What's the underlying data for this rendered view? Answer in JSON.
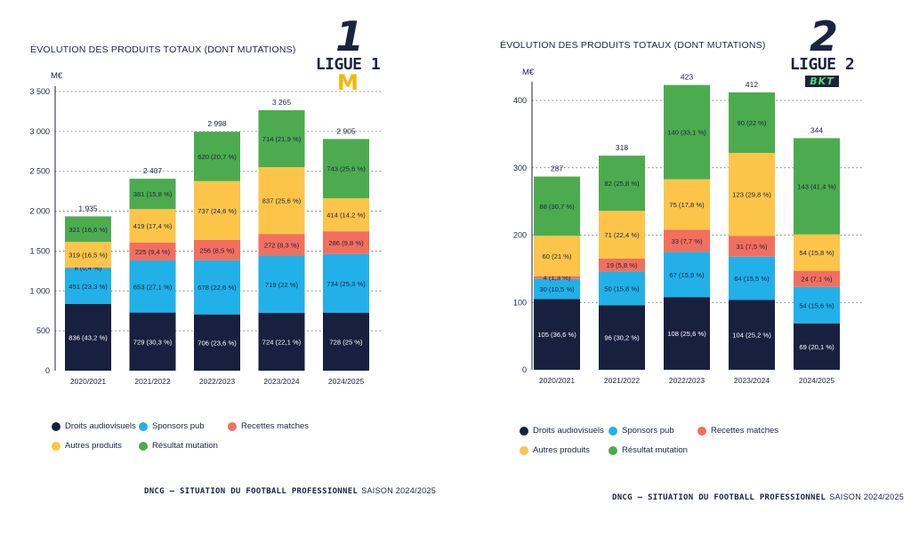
{
  "legend": [
    {
      "key": "droits",
      "label": "Droits audiovisuels",
      "color": "#17213f"
    },
    {
      "key": "sponsors",
      "label": "Sponsors pub",
      "color": "#21b1e8"
    },
    {
      "key": "recettes",
      "label": "Recettes matches",
      "color": "#f26f5f"
    },
    {
      "key": "autres",
      "label": "Autres produits",
      "color": "#fcc54a"
    },
    {
      "key": "mutation",
      "label": "Résultat mutation",
      "color": "#4dab4f"
    }
  ],
  "footer": {
    "bold": "DNCG – SITUATION DU FOOTBALL PROFESSIONNEL",
    "regular": "SAISON 2024/2025"
  },
  "chart_data": [
    {
      "type": "bar",
      "stacked": true,
      "title": "ÉVOLUTION DES PRODUITS TOTAUX (DONT MUTATIONS)",
      "ylabel": "M€",
      "logo": {
        "number": "1",
        "name": "LIGUE 1",
        "sponsor": "McDonald's"
      },
      "categories": [
        "2020/2021",
        "2021/2022",
        "2022/2023",
        "2023/2024",
        "2024/2025"
      ],
      "totals": [
        "1 935",
        "2 407",
        "2 998",
        "3 265",
        "2 905"
      ],
      "ylim": [
        0,
        3500
      ],
      "yticks": [
        0,
        500,
        1000,
        1500,
        2000,
        2500,
        3000,
        3500
      ],
      "ytick_labels": [
        "0",
        "500",
        "1 000",
        "1 500",
        "2 000",
        "2 500",
        "3 000",
        "3 500"
      ],
      "grid": "dotted horizontal",
      "series": [
        {
          "name": "Droits audiovisuels",
          "values": [
            836,
            729,
            706,
            724,
            728
          ],
          "labels": [
            "836 (43,2 %)",
            "729 (30,3 %)",
            "706 (23,6 %)",
            "724 (22,1 %)",
            "728 (25 %)"
          ]
        },
        {
          "name": "Sponsors pub",
          "values": [
            451,
            653,
            678,
            719,
            734
          ],
          "labels": [
            "451 (23,3 %)",
            "653 (27,1 %)",
            "678 (22,6 %)",
            "719 (22 %)",
            "734 (25,3 %)"
          ]
        },
        {
          "name": "Recettes matches",
          "values": [
            8,
            225,
            256,
            272,
            286
          ],
          "labels": [
            "8 (0,4 %)",
            "225 (9,4 %)",
            "256 (8,5 %)",
            "272 (8,3 %)",
            "286 (9,8 %)"
          ]
        },
        {
          "name": "Autres produits",
          "values": [
            319,
            419,
            737,
            837,
            414
          ],
          "labels": [
            "319 (16,5 %)",
            "419 (17,4 %)",
            "737 (24,6 %)",
            "837 (25,6 %)",
            "414 (14,2 %)"
          ]
        },
        {
          "name": "Résultat mutation",
          "values": [
            321,
            381,
            620,
            714,
            743
          ],
          "labels": [
            "321 (16,6 %)",
            "381 (15,8 %)",
            "620 (20,7 %)",
            "714 (21,9 %)",
            "743 (25,6 %)"
          ]
        }
      ]
    },
    {
      "type": "bar",
      "stacked": true,
      "title": "ÉVOLUTION DES PRODUITS TOTAUX (DONT MUTATIONS)",
      "ylabel": "M€",
      "logo": {
        "number": "2",
        "name": "LIGUE 2",
        "sponsor": "BKT"
      },
      "categories": [
        "2020/2021",
        "2021/2022",
        "2022/2023",
        "2023/2024",
        "2024/2025"
      ],
      "totals": [
        "287",
        "318",
        "423",
        "412",
        "344"
      ],
      "ylim": [
        0,
        420
      ],
      "yticks": [
        0,
        100,
        200,
        300,
        400
      ],
      "ytick_labels": [
        "0",
        "100",
        "200",
        "300",
        "400"
      ],
      "grid": "dotted horizontal",
      "series": [
        {
          "name": "Droits audiovisuels",
          "values": [
            105,
            96,
            108,
            104,
            69
          ],
          "labels": [
            "105 (36,6 %)",
            "96 (30,2 %)",
            "108 (25,6 %)",
            "104 (25,2 %)",
            "69 (20,1 %)"
          ]
        },
        {
          "name": "Sponsors pub",
          "values": [
            30,
            50,
            67,
            64,
            54
          ],
          "labels": [
            "30 (10,5 %)",
            "50 (15,8 %)",
            "67 (15,9 %)",
            "64 (15,5 %)",
            "54 (15,6 %)"
          ]
        },
        {
          "name": "Recettes matches",
          "values": [
            4,
            19,
            33,
            31,
            24
          ],
          "labels": [
            "4 (1,3 %)",
            "19 (5,8 %)",
            "33 (7,7 %)",
            "31 (7,5 %)",
            "24 (7,1 %)"
          ]
        },
        {
          "name": "Autres produits",
          "values": [
            60,
            71,
            75,
            123,
            54
          ],
          "labels": [
            "60 (21 %)",
            "71 (22,4 %)",
            "75 (17,8 %)",
            "123 (29,8 %)",
            "54 (15,8 %)"
          ]
        },
        {
          "name": "Résultat mutation",
          "values": [
            88,
            82,
            140,
            90,
            143
          ],
          "labels": [
            "88 (30,7 %)",
            "82 (25,8 %)",
            "140 (33,1 %)",
            "90 (22 %)",
            "143 (41,4 %)"
          ]
        }
      ]
    }
  ]
}
